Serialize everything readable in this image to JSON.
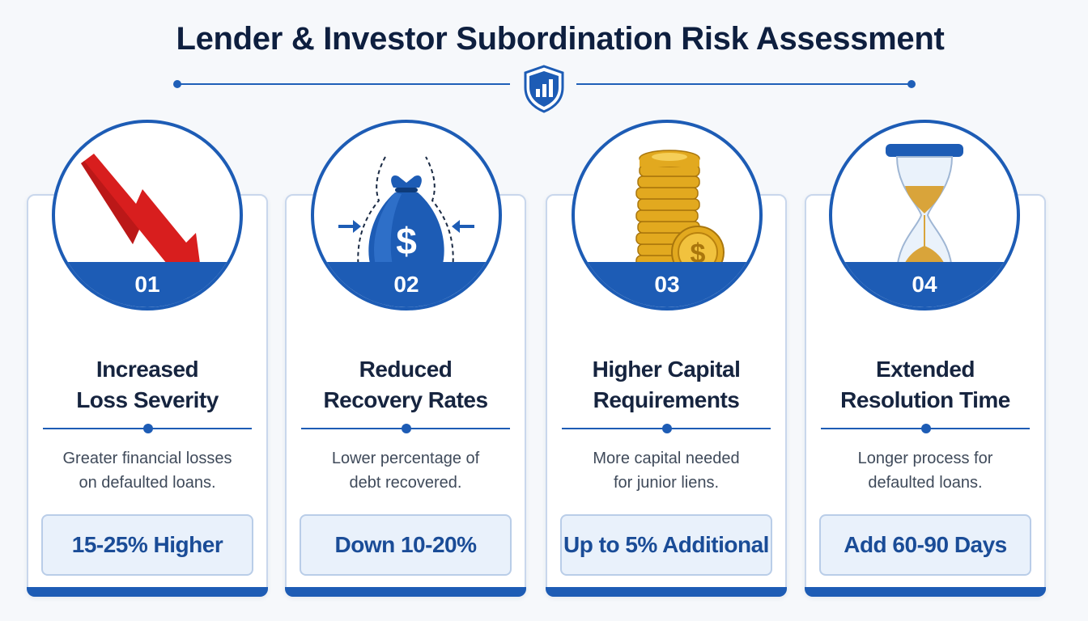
{
  "header": {
    "title": "Lender & Investor Subordination Risk Assessment"
  },
  "colors": {
    "primary": "#1d5cb5",
    "title_text": "#0e1f3f",
    "metric_bg": "#e9f1fb",
    "arrow_red": "#d81e1e",
    "coin_gold": "#e2a91f"
  },
  "cards": [
    {
      "number": "01",
      "icon": "down-trend-arrow-icon",
      "title_line1": "Increased",
      "title_line2": "Loss Severity",
      "desc_line1": "Greater financial losses",
      "desc_line2": "on defaulted loans.",
      "metric": "15-25% Higher"
    },
    {
      "number": "02",
      "icon": "shrinking-money-bag-icon",
      "title_line1": "Reduced",
      "title_line2": "Recovery Rates",
      "desc_line1": "Lower percentage of",
      "desc_line2": "debt recovered.",
      "metric": "Down 10-20%"
    },
    {
      "number": "03",
      "icon": "gold-coin-stack-icon",
      "title_line1": "Higher Capital",
      "title_line2": "Requirements",
      "desc_line1": "More capital needed",
      "desc_line2": "for junior liens.",
      "metric": "Up to 5% Additional"
    },
    {
      "number": "04",
      "icon": "hourglass-icon",
      "title_line1": "Extended",
      "title_line2": "Resolution Time",
      "desc_line1": "Longer process for",
      "desc_line2": "defaulted loans.",
      "metric": "Add 60-90 Days"
    }
  ]
}
